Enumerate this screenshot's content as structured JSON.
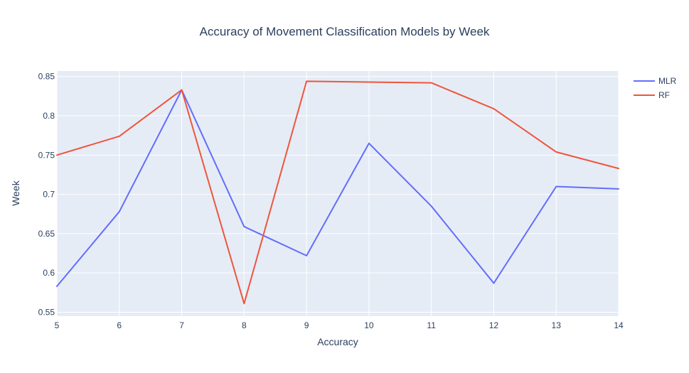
{
  "chart_data": {
    "type": "line",
    "title": "Accuracy of Movement Classification Models by Week",
    "xlabel": "Accuracy",
    "ylabel": "Week",
    "x": [
      5,
      6,
      7,
      8,
      9,
      10,
      11,
      12,
      13,
      14
    ],
    "xlim": [
      5,
      14
    ],
    "ylim": [
      0.545,
      0.857
    ],
    "x_ticks": [
      5,
      6,
      7,
      8,
      9,
      10,
      11,
      12,
      13,
      14
    ],
    "y_ticks": [
      0.55,
      0.6,
      0.65,
      0.7,
      0.75,
      0.8,
      0.85
    ],
    "y_tick_labels": [
      "0.55",
      "0.6",
      "0.65",
      "0.7",
      "0.75",
      "0.8",
      "0.85"
    ],
    "grid": true,
    "legend": "top-right",
    "series": [
      {
        "name": "MLR",
        "color": "#636efa",
        "values": [
          0.583,
          0.678,
          0.833,
          0.659,
          0.622,
          0.765,
          0.685,
          0.587,
          0.71,
          0.707
        ]
      },
      {
        "name": "RF",
        "color": "#ef553b",
        "values": [
          0.75,
          0.774,
          0.833,
          0.561,
          0.844,
          0.843,
          0.842,
          0.809,
          0.754,
          0.733
        ]
      }
    ]
  }
}
